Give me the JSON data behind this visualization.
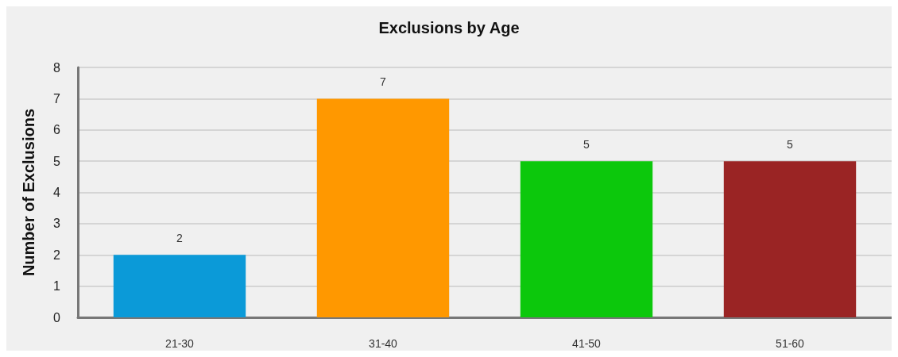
{
  "chart_data": {
    "type": "bar",
    "title": "Exclusions by Age",
    "ylabel": "Number of Exclusions",
    "categories": [
      "21-30",
      "31-40",
      "41-50",
      "51-60"
    ],
    "values": [
      2,
      7,
      5,
      5
    ],
    "colors": [
      "#0b9ad8",
      "#ff9800",
      "#0cc80c",
      "#9a2424"
    ],
    "ylim": [
      0,
      8
    ],
    "yticks": [
      0,
      1,
      2,
      3,
      4,
      5,
      6,
      7,
      8
    ],
    "grid": "y",
    "data_labels": true
  }
}
